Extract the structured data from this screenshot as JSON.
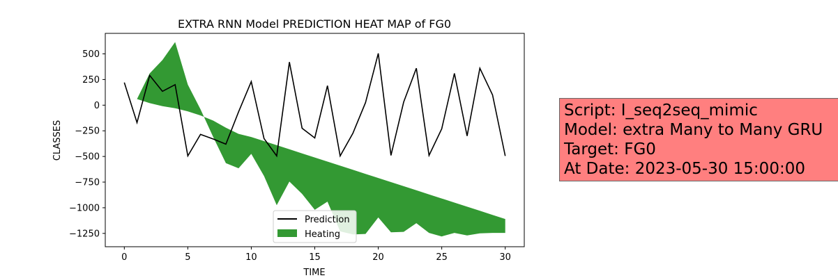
{
  "chart_data": {
    "type": "line",
    "title": "EXTRA RNN Model PREDICTION HEAT MAP of FG0",
    "xlabel": "TIME",
    "ylabel": "CLASSES",
    "xlim": [
      -1.5,
      31.5
    ],
    "ylim": [
      -1380,
      700
    ],
    "xticks": [
      0,
      5,
      10,
      15,
      20,
      25,
      30
    ],
    "yticks": [
      500,
      250,
      0,
      -250,
      -500,
      -750,
      -1000,
      -1250
    ],
    "grid": false,
    "legend_position": "lower-center",
    "series": [
      {
        "name": "Prediction",
        "type": "line",
        "color": "#000000",
        "x": [
          0,
          1,
          2,
          3,
          4,
          5,
          6,
          7,
          8,
          9,
          10,
          11,
          12,
          13,
          14,
          15,
          16,
          17,
          18,
          19,
          20,
          21,
          22,
          23,
          24,
          25,
          26,
          27,
          28,
          29,
          30
        ],
        "y": [
          220,
          -170,
          290,
          135,
          200,
          -495,
          -285,
          -330,
          -380,
          -65,
          230,
          -325,
          -495,
          420,
          -225,
          -320,
          190,
          -495,
          -275,
          25,
          505,
          -490,
          30,
          360,
          -490,
          -230,
          310,
          -300,
          360,
          100,
          -495
        ]
      },
      {
        "name": "Heating",
        "type": "fill_between",
        "color": "#339933",
        "x": [
          0,
          1,
          2,
          3,
          4,
          5,
          6,
          7,
          8,
          9,
          10,
          11,
          12,
          13,
          14,
          15,
          16,
          17,
          18,
          19,
          20,
          21,
          22,
          23,
          24,
          25,
          26,
          27,
          28,
          29,
          30
        ],
        "y_lower": [
          220,
          60,
          20,
          -10,
          -30,
          -60,
          -100,
          -150,
          -220,
          -280,
          -310,
          -350,
          -390,
          -430,
          -470,
          -510,
          -550,
          -590,
          -630,
          -670,
          -710,
          -750,
          -790,
          -830,
          -870,
          -910,
          -950,
          -990,
          -1030,
          -1070,
          -1110
        ],
        "y_upper": [
          220,
          60,
          310,
          440,
          615,
          200,
          -40,
          -310,
          -565,
          -615,
          -475,
          -690,
          -975,
          -745,
          -865,
          -1020,
          -940,
          -1230,
          -1260,
          -1255,
          -1095,
          -1240,
          -1235,
          -1150,
          -1245,
          -1280,
          -1245,
          -1270,
          -1250,
          -1245,
          -1245
        ]
      }
    ]
  },
  "info_box": {
    "line1": "Script: I_seq2seq_mimic",
    "line2": "Model: extra Many to Many GRU",
    "line3": "Target: FG0",
    "line4": "At Date: 2023-05-30 15:00:00"
  }
}
